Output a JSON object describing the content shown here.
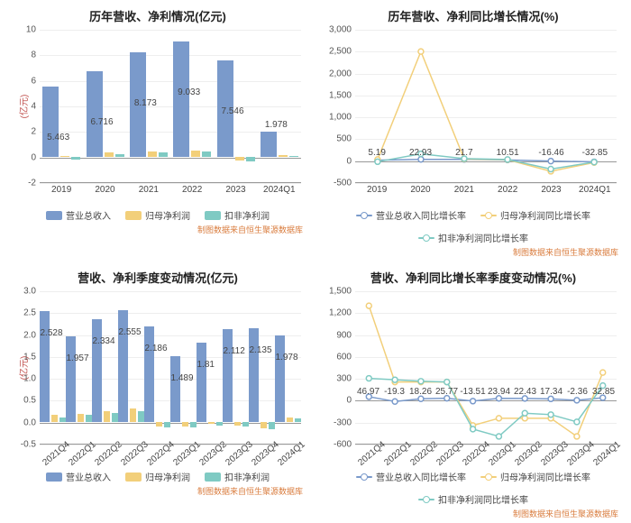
{
  "global": {
    "source_text": "制图数据来自恒生聚源数据库",
    "colors": {
      "series_blue": "#7a9acb",
      "series_yellow": "#f2cf7a",
      "series_teal": "#7fcac3",
      "grid": "#eeeeee",
      "axis": "#999999",
      "text": "#333333",
      "ylabel": "#c0504d",
      "source": "#d97b3c"
    }
  },
  "panel_tl": {
    "title": "历年营收、净利情况(亿元)",
    "ylabel": "(亿元)",
    "ylim": [
      -2,
      10
    ],
    "ytick_step": 2,
    "categories": [
      "2019",
      "2020",
      "2021",
      "2022",
      "2023",
      "2024Q1"
    ],
    "series": [
      {
        "name": "营业总收入",
        "color": "#7a9acb",
        "values": [
          5.463,
          6.716,
          8.173,
          9.033,
          7.546,
          1.978
        ]
      },
      {
        "name": "归母净利润",
        "color": "#f2cf7a",
        "values": [
          0.05,
          0.3,
          0.4,
          0.45,
          -0.3,
          0.1
        ]
      },
      {
        "name": "扣非净利润",
        "color": "#7fcac3",
        "values": [
          -0.2,
          0.2,
          0.3,
          0.4,
          -0.35,
          0.08
        ]
      }
    ],
    "value_labels": [
      "5.463",
      "6.716",
      "8.173",
      "9.033",
      "7.546",
      "1.978"
    ]
  },
  "panel_tr": {
    "title": "历年营收、净利同比增长情况(%)",
    "ylim": [
      -500,
      3000
    ],
    "ytick_step": 500,
    "categories": [
      "2019",
      "2020",
      "2021",
      "2022",
      "2023",
      "2024Q1"
    ],
    "series": [
      {
        "name": "营业总收入同比增长率",
        "color": "#7a9acb",
        "values": [
          5.19,
          22.93,
          21.7,
          10.51,
          -16.46,
          -32.85
        ]
      },
      {
        "name": "归母净利润同比增长率",
        "color": "#f2cf7a",
        "values": [
          20,
          2500,
          30,
          15,
          -250,
          -50
        ]
      },
      {
        "name": "扣非净利润同比增长率",
        "color": "#7fcac3",
        "values": [
          -30,
          150,
          40,
          20,
          -200,
          -40
        ]
      }
    ],
    "point_labels": [
      "5.19",
      "22.93",
      "21.7",
      "10.51",
      "-16.46",
      "-32.85"
    ]
  },
  "panel_bl": {
    "title": "营收、净利季度变动情况(亿元)",
    "ylabel": "(亿元)",
    "ylim": [
      -0.5,
      3
    ],
    "ytick_step": 0.5,
    "categories": [
      "2021Q4",
      "2022Q1",
      "2022Q2",
      "2022Q3",
      "2022Q4",
      "2023Q1",
      "2023Q2",
      "2023Q3",
      "2023Q4",
      "2024Q1"
    ],
    "series": [
      {
        "name": "营业总收入",
        "color": "#7a9acb",
        "values": [
          2.528,
          1.957,
          2.334,
          2.555,
          2.186,
          1.489,
          1.81,
          2.112,
          2.135,
          1.978
        ]
      },
      {
        "name": "归母净利润",
        "color": "#f2cf7a",
        "values": [
          0.15,
          0.18,
          0.25,
          0.3,
          -0.1,
          -0.1,
          -0.05,
          -0.08,
          -0.15,
          0.1
        ]
      },
      {
        "name": "扣非净利润",
        "color": "#7fcac3",
        "values": [
          0.1,
          0.15,
          0.2,
          0.25,
          -0.12,
          -0.12,
          -0.08,
          -0.1,
          -0.18,
          0.08
        ]
      }
    ],
    "value_labels": [
      "2.528",
      "1.957",
      "2.334",
      "2.555",
      "2.186",
      "1.489",
      "1.81",
      "2.112",
      "2.135",
      "1.978"
    ]
  },
  "panel_br": {
    "title": "营收、净利同比增长率季度变动情况(%)",
    "ylim": [
      -600,
      1500
    ],
    "ytick_step": 300,
    "categories": [
      "2021Q4",
      "2022Q1",
      "2022Q2",
      "2022Q3",
      "2022Q4",
      "2023Q1",
      "2023Q2",
      "2023Q3",
      "2023Q4",
      "2024Q1"
    ],
    "series": [
      {
        "name": "营业总收入同比增长率",
        "color": "#7a9acb",
        "values": [
          46.97,
          -19.3,
          18.26,
          25.77,
          -13.51,
          23.94,
          22.43,
          17.34,
          -2.36,
          32.85
        ]
      },
      {
        "name": "归母净利润同比增长率",
        "color": "#f2cf7a",
        "values": [
          1300,
          250,
          250,
          250,
          -350,
          -250,
          -250,
          -250,
          -500,
          380
        ]
      },
      {
        "name": "扣非净利润同比增长率",
        "color": "#7fcac3",
        "values": [
          300,
          280,
          260,
          250,
          -400,
          -500,
          -180,
          -200,
          -300,
          200
        ]
      }
    ],
    "point_labels": [
      "46.97",
      "-19.3",
      "18.26",
      "25.77",
      "-13.51",
      "23.94",
      "22.43",
      "17.34",
      "-2.36",
      "32.85"
    ]
  }
}
